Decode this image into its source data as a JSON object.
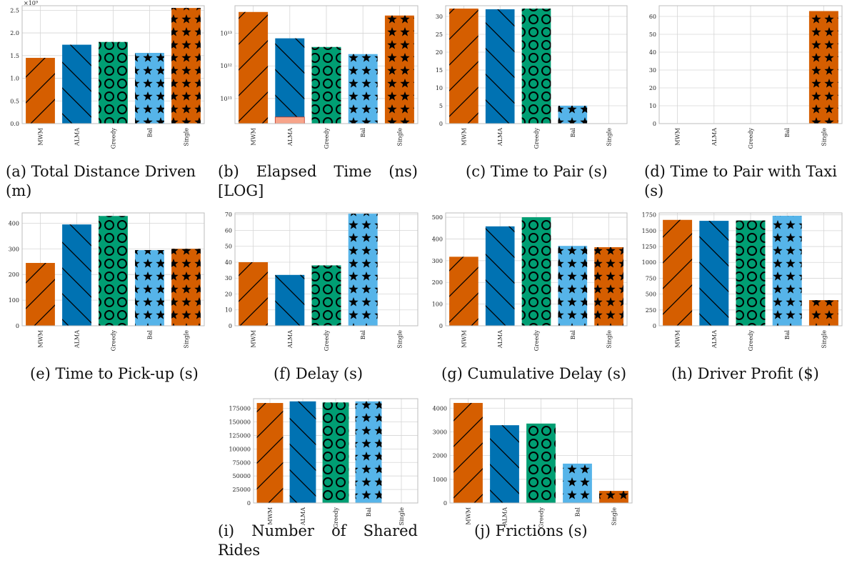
{
  "colors": {
    "vermillion": "#D55E00",
    "blue": "#0072B2",
    "green": "#009E73",
    "sky": "#56B4E9",
    "salmon": "#F7A48A",
    "grid": "#d6d6d6",
    "frame": "#bdbdbd"
  },
  "categories": [
    "MWM",
    "ALMA",
    "Greedy",
    "Bal",
    "Single"
  ],
  "chart_data": [
    {
      "id": "a",
      "type": "bar",
      "categories": [
        "MWM",
        "ALMA",
        "Greedy",
        "Bal",
        "Single"
      ],
      "values": [
        1.45,
        1.74,
        1.8,
        1.56,
        2.55
      ],
      "ylim": [
        0,
        2.6
      ],
      "yticks": [
        "0.0",
        "0.5",
        "1.0",
        "1.5",
        "2.0",
        "2.5"
      ],
      "yticks_values": [
        0,
        0.5,
        1.0,
        1.5,
        2.0,
        2.5
      ],
      "offset_label": "×10⁹",
      "caption": [
        "(a) Total Distance Driven",
        "(m)"
      ],
      "grid": true
    },
    {
      "id": "b",
      "type": "bar",
      "yscale": "log",
      "categories": [
        "MWM",
        "ALMA",
        "Greedy",
        "Bal",
        "Single"
      ],
      "values": [
        45000000000000,
        7000000000000,
        3800000000000,
        2300000000000,
        35000000000000
      ],
      "inner_bar": {
        "category": "ALMA",
        "value": 27000000000
      },
      "ylim": [
        17000000000,
        70000000000000
      ],
      "yticks": [
        "10¹¹",
        "10¹²",
        "10¹³"
      ],
      "yticks_values": [
        100000000000,
        1000000000000,
        10000000000000
      ],
      "caption": [
        "(b) Elapsed Time (ns)",
        "[LOG]"
      ],
      "grid": true
    },
    {
      "id": "c",
      "type": "bar",
      "categories": [
        "MWM",
        "ALMA",
        "Greedy",
        "Bal",
        "Single"
      ],
      "values": [
        32.2,
        32.0,
        32.2,
        5.0,
        0
      ],
      "ylim": [
        0,
        33
      ],
      "yticks": [
        "0",
        "5",
        "10",
        "15",
        "20",
        "25",
        "30"
      ],
      "yticks_values": [
        0,
        5,
        10,
        15,
        20,
        25,
        30
      ],
      "caption": [
        "(c) Time to Pair (s)"
      ],
      "grid": true
    },
    {
      "id": "d",
      "type": "bar",
      "categories": [
        "MWM",
        "ALMA",
        "Greedy",
        "Bal",
        "Single"
      ],
      "values": [
        0,
        0,
        0,
        0,
        63
      ],
      "ylim": [
        0,
        66
      ],
      "yticks": [
        "0",
        "10",
        "20",
        "30",
        "40",
        "50",
        "60"
      ],
      "yticks_values": [
        0,
        10,
        20,
        30,
        40,
        50,
        60
      ],
      "caption": [
        "(d) Time to Pair with Taxi",
        "(s)"
      ],
      "grid": true
    },
    {
      "id": "e",
      "type": "bar",
      "categories": [
        "MWM",
        "ALMA",
        "Greedy",
        "Bal",
        "Single"
      ],
      "values": [
        245,
        395,
        428,
        295,
        300
      ],
      "ylim": [
        0,
        440
      ],
      "yticks": [
        "0",
        "100",
        "200",
        "300",
        "400"
      ],
      "yticks_values": [
        0,
        100,
        200,
        300,
        400
      ],
      "caption": [
        "(e) Time to Pick-up (s)"
      ],
      "grid": true
    },
    {
      "id": "f",
      "type": "bar",
      "categories": [
        "MWM",
        "ALMA",
        "Greedy",
        "Bal",
        "Single"
      ],
      "values": [
        40,
        32,
        38,
        70.5,
        0
      ],
      "ylim": [
        0,
        71
      ],
      "yticks": [
        "0",
        "10",
        "20",
        "30",
        "40",
        "50",
        "60",
        "70"
      ],
      "yticks_values": [
        0,
        10,
        20,
        30,
        40,
        50,
        60,
        70
      ],
      "caption": [
        "(f) Delay (s)"
      ],
      "grid": true
    },
    {
      "id": "g",
      "type": "bar",
      "categories": [
        "MWM",
        "ALMA",
        "Greedy",
        "Bal",
        "Single"
      ],
      "values": [
        318,
        458,
        500,
        368,
        362
      ],
      "ylim": [
        0,
        520
      ],
      "yticks": [
        "0",
        "100",
        "200",
        "300",
        "400",
        "500"
      ],
      "yticks_values": [
        0,
        100,
        200,
        300,
        400,
        500
      ],
      "caption": [
        "(g) Cumulative Delay (s)"
      ],
      "grid": true
    },
    {
      "id": "h",
      "type": "bar",
      "categories": [
        "MWM",
        "ALMA",
        "Greedy",
        "Bal",
        "Single"
      ],
      "values": [
        1670,
        1655,
        1660,
        1735,
        405
      ],
      "ylim": [
        0,
        1780
      ],
      "yticks": [
        "0",
        "250",
        "500",
        "750",
        "1000",
        "1250",
        "1500",
        "1750"
      ],
      "yticks_values": [
        0,
        250,
        500,
        750,
        1000,
        1250,
        1500,
        1750
      ],
      "caption": [
        "(h) Driver Profit ($)"
      ],
      "grid": true
    },
    {
      "id": "i",
      "type": "bar",
      "categories": [
        "MWM",
        "ALMA",
        "Greedy",
        "Bal",
        "Single"
      ],
      "values": [
        185000,
        188000,
        186000,
        188000,
        0
      ],
      "ylim": [
        0,
        193000
      ],
      "yticks": [
        "0",
        "25000",
        "50000",
        "75000",
        "100000",
        "125000",
        "150000",
        "175000"
      ],
      "yticks_values": [
        0,
        25000,
        50000,
        75000,
        100000,
        125000,
        150000,
        175000
      ],
      "caption": [
        "(i) Number of Shared",
        "Rides"
      ],
      "grid": true
    },
    {
      "id": "j",
      "type": "bar",
      "categories": [
        "MWM",
        "ALMA",
        "Greedy",
        "Bal",
        "Single"
      ],
      "values": [
        4220,
        3280,
        3350,
        1660,
        510
      ],
      "ylim": [
        0,
        4400
      ],
      "yticks": [
        "0",
        "1000",
        "2000",
        "3000",
        "4000"
      ],
      "yticks_values": [
        0,
        1000,
        2000,
        3000,
        4000
      ],
      "caption": [
        "(j) Frictions (s)"
      ],
      "grid": true
    }
  ]
}
